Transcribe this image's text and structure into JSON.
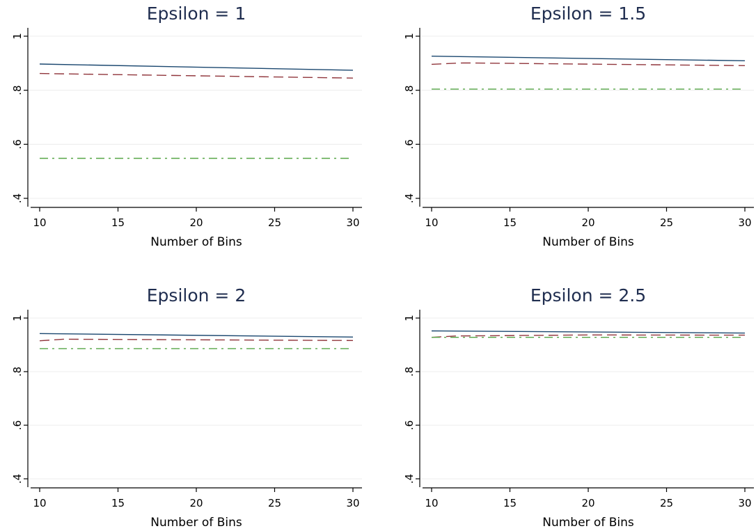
{
  "chart_data": [
    {
      "type": "line",
      "title": "Epsilon = 1",
      "xlabel": "Number of Bins",
      "ylabel": "",
      "xlim": [
        10,
        30
      ],
      "ylim": [
        0.4,
        1.0
      ],
      "x_ticks": [
        10,
        15,
        20,
        25,
        30
      ],
      "y_ticks": [
        0.4,
        0.6,
        0.8,
        1.0
      ],
      "y_tick_labels": [
        ".4",
        ".6",
        ".8",
        "1"
      ],
      "grid": true,
      "legend": "none",
      "series": [
        {
          "style": "solid",
          "color": "#1a476f",
          "x": [
            10,
            30
          ],
          "y": [
            0.897,
            0.874
          ]
        },
        {
          "style": "dashed",
          "color": "#90353b",
          "x": [
            10,
            30
          ],
          "y": [
            0.862,
            0.845
          ]
        },
        {
          "style": "dashdot",
          "color": "#55a546",
          "x": [
            10,
            30
          ],
          "y": [
            0.548,
            0.548
          ]
        }
      ]
    },
    {
      "type": "line",
      "title": "Epsilon = 1.5",
      "xlabel": "Number of Bins",
      "ylabel": "",
      "xlim": [
        10,
        30
      ],
      "ylim": [
        0.4,
        1.0
      ],
      "x_ticks": [
        10,
        15,
        20,
        25,
        30
      ],
      "y_ticks": [
        0.4,
        0.6,
        0.8,
        1.0
      ],
      "y_tick_labels": [
        ".4",
        ".6",
        ".8",
        "1"
      ],
      "grid": true,
      "legend": "none",
      "series": [
        {
          "style": "solid",
          "color": "#1a476f",
          "x": [
            10,
            30
          ],
          "y": [
            0.926,
            0.909
          ]
        },
        {
          "style": "dashed",
          "color": "#90353b",
          "x": [
            10,
            12,
            30
          ],
          "y": [
            0.896,
            0.901,
            0.891
          ]
        },
        {
          "style": "dashdot",
          "color": "#55a546",
          "x": [
            10,
            30
          ],
          "y": [
            0.804,
            0.804
          ]
        }
      ]
    },
    {
      "type": "line",
      "title": "Epsilon = 2",
      "xlabel": "Number of Bins",
      "ylabel": "",
      "xlim": [
        10,
        30
      ],
      "ylim": [
        0.4,
        1.0
      ],
      "x_ticks": [
        10,
        15,
        20,
        25,
        30
      ],
      "y_ticks": [
        0.4,
        0.6,
        0.8,
        1.0
      ],
      "y_tick_labels": [
        ".4",
        ".6",
        ".8",
        "1"
      ],
      "grid": true,
      "legend": "none",
      "series": [
        {
          "style": "solid",
          "color": "#1a476f",
          "x": [
            10,
            30
          ],
          "y": [
            0.942,
            0.929
          ]
        },
        {
          "style": "dashed",
          "color": "#90353b",
          "x": [
            10,
            11.5,
            30
          ],
          "y": [
            0.915,
            0.921,
            0.916
          ]
        },
        {
          "style": "dashdot",
          "color": "#55a546",
          "x": [
            10,
            30
          ],
          "y": [
            0.886,
            0.886
          ]
        }
      ]
    },
    {
      "type": "line",
      "title": "Epsilon = 2.5",
      "xlabel": "Number of Bins",
      "ylabel": "",
      "xlim": [
        10,
        30
      ],
      "ylim": [
        0.4,
        1.0
      ],
      "x_ticks": [
        10,
        15,
        20,
        25,
        30
      ],
      "y_ticks": [
        0.4,
        0.6,
        0.8,
        1.0
      ],
      "y_tick_labels": [
        ".4",
        ".6",
        ".8",
        "1"
      ],
      "grid": true,
      "legend": "none",
      "series": [
        {
          "style": "solid",
          "color": "#1a476f",
          "x": [
            10,
            30
          ],
          "y": [
            0.952,
            0.944
          ]
        },
        {
          "style": "dashed",
          "color": "#90353b",
          "x": [
            10,
            11.5,
            20,
            30
          ],
          "y": [
            0.928,
            0.933,
            0.937,
            0.936
          ]
        },
        {
          "style": "dashdot",
          "color": "#55a546",
          "x": [
            10,
            30
          ],
          "y": [
            0.928,
            0.928
          ]
        }
      ]
    }
  ]
}
